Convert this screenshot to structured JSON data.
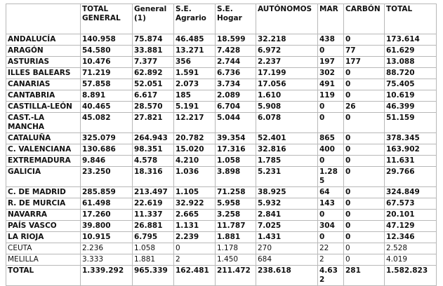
{
  "table": {
    "header": [
      "",
      "TOTAL GENERAL",
      "General (1)",
      "S.E. Agrario",
      "S.E. Hogar",
      "AUTÓNOMOS",
      "MAR",
      "CARBÓN",
      "TOTAL"
    ],
    "rows": [
      [
        "ANDALUCÍA",
        "140.958",
        "75.874",
        "46.485",
        "18.599",
        "32.218",
        "438",
        "0",
        "173.614"
      ],
      [
        "ARAGÓN",
        "54.580",
        "33.881",
        "13.271",
        "7.428",
        "6.972",
        "0",
        "77",
        "61.629"
      ],
      [
        "ASTURIAS",
        "10.476",
        "7.377",
        "356",
        "2.744",
        "2.237",
        "197",
        "177",
        "13.088"
      ],
      [
        "ILLES BALEARS",
        "71.219",
        "62.892",
        "1.591",
        "6.736",
        "17.199",
        "302",
        "0",
        "88.720"
      ],
      [
        "CANARIAS",
        "57.858",
        "52.051",
        "2.073",
        "3.734",
        "17.056",
        "491",
        "0",
        "75.405"
      ],
      [
        "CANTABRIA",
        "8.891",
        "6.617",
        "185",
        "2.089",
        "1.610",
        "119",
        "0",
        "10.619"
      ],
      [
        "CASTILLA-LEÓN",
        "40.465",
        "28.570",
        "5.191",
        "6.704",
        "5.908",
        "0",
        "26",
        "46.399"
      ],
      [
        "CAST.-LA MANCHA",
        "45.082",
        "27.821",
        "12.217",
        "5.044",
        "6.078",
        "0",
        "0",
        "51.159"
      ],
      [
        "CATALUÑA",
        "325.079",
        "264.943",
        "20.782",
        "39.354",
        "52.401",
        "865",
        "0",
        "378.345"
      ],
      [
        "C. VALENCIANA",
        "130.686",
        "98.351",
        "15.020",
        "17.316",
        "32.816",
        "400",
        "0",
        "163.902"
      ],
      [
        "EXTREMADURA",
        "9.846",
        "4.578",
        "4.210",
        "1.058",
        "1.785",
        "0",
        "0",
        "11.631"
      ],
      [
        "GALICIA",
        "23.250",
        "18.316",
        "1.036",
        "3.898",
        "5.231",
        "1.285",
        "0",
        "29.766"
      ],
      [
        "C. DE MADRID",
        "285.859",
        "213.497",
        "1.105",
        "71.258",
        "38.925",
        "64",
        "0",
        "324.849"
      ],
      [
        "R. DE MURCIA",
        "61.498",
        "22.619",
        "32.922",
        "5.958",
        "5.932",
        "143",
        "0",
        "67.573"
      ],
      [
        "NAVARRA",
        "17.260",
        "11.337",
        "2.665",
        "3.258",
        "2.841",
        "0",
        "0",
        "20.101"
      ],
      [
        "PAÍS VASCO",
        "39.800",
        "26.881",
        "1.131",
        "11.787",
        "7.025",
        "304",
        "0",
        "47.129"
      ],
      [
        "LA RIOJA",
        "10.915",
        "6.795",
        "2.239",
        "1.881",
        "1.431",
        "0",
        "0",
        "12.346"
      ],
      [
        "CEUTA",
        "2.236",
        "1.058",
        "0",
        "1.178",
        "270",
        "22",
        "0",
        "2.528"
      ],
      [
        "MELILLA",
        "3.333",
        "1.881",
        "2",
        "1.450",
        "684",
        "2",
        "0",
        "4.019"
      ],
      [
        "TOTAL",
        "1.339.292",
        "965.339",
        "162.481",
        "211.472",
        "238.618",
        "4.632",
        "281",
        "1.582.823"
      ]
    ]
  }
}
